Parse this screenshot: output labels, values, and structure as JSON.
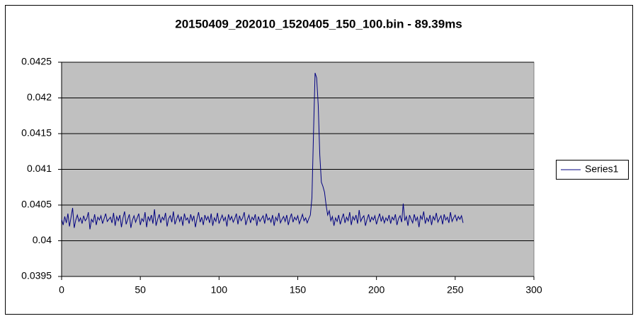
{
  "chart_data": {
    "type": "line",
    "title": "20150409_202010_1520405_150_100.bin - 89.39ms",
    "x": [
      0,
      1,
      2,
      3,
      4,
      5,
      6,
      7,
      8,
      9,
      10,
      11,
      12,
      13,
      14,
      15,
      16,
      17,
      18,
      19,
      20,
      21,
      22,
      23,
      24,
      25,
      26,
      27,
      28,
      29,
      30,
      31,
      32,
      33,
      34,
      35,
      36,
      37,
      38,
      39,
      40,
      41,
      42,
      43,
      44,
      45,
      46,
      47,
      48,
      49,
      50,
      51,
      52,
      53,
      54,
      55,
      56,
      57,
      58,
      59,
      60,
      61,
      62,
      63,
      64,
      65,
      66,
      67,
      68,
      69,
      70,
      71,
      72,
      73,
      74,
      75,
      76,
      77,
      78,
      79,
      80,
      81,
      82,
      83,
      84,
      85,
      86,
      87,
      88,
      89,
      90,
      91,
      92,
      93,
      94,
      95,
      96,
      97,
      98,
      99,
      100,
      101,
      102,
      103,
      104,
      105,
      106,
      107,
      108,
      109,
      110,
      111,
      112,
      113,
      114,
      115,
      116,
      117,
      118,
      119,
      120,
      121,
      122,
      123,
      124,
      125,
      126,
      127,
      128,
      129,
      130,
      131,
      132,
      133,
      134,
      135,
      136,
      137,
      138,
      139,
      140,
      141,
      142,
      143,
      144,
      145,
      146,
      147,
      148,
      149,
      150,
      151,
      152,
      153,
      154,
      155,
      156,
      157,
      158,
      159,
      160,
      161,
      162,
      163,
      164,
      165,
      166,
      167,
      168,
      169,
      170,
      171,
      172,
      173,
      174,
      175,
      176,
      177,
      178,
      179,
      180,
      181,
      182,
      183,
      184,
      185,
      186,
      187,
      188,
      189,
      190,
      191,
      192,
      193,
      194,
      195,
      196,
      197,
      198,
      199,
      200,
      201,
      202,
      203,
      204,
      205,
      206,
      207,
      208,
      209,
      210,
      211,
      212,
      213,
      214,
      215,
      216,
      217,
      218,
      219,
      220,
      221,
      222,
      223,
      224,
      225,
      226,
      227,
      228,
      229,
      230,
      231,
      232,
      233,
      234,
      235,
      236,
      237,
      238,
      239,
      240,
      241,
      242,
      243,
      244,
      245,
      246,
      247,
      248,
      249,
      250,
      251,
      252,
      253,
      254,
      255
    ],
    "series": [
      {
        "name": "Series1",
        "color": "#000080",
        "values": [
          0.0403,
          0.04022,
          0.04034,
          0.04025,
          0.04038,
          0.0402,
          0.04033,
          0.04046,
          0.04018,
          0.04029,
          0.04036,
          0.04027,
          0.04032,
          0.04024,
          0.04035,
          0.04028,
          0.04031,
          0.0404,
          0.04016,
          0.0403,
          0.04026,
          0.04037,
          0.04022,
          0.04033,
          0.04029,
          0.04035,
          0.04024,
          0.04031,
          0.04038,
          0.04027,
          0.0403,
          0.04033,
          0.04025,
          0.04039,
          0.04021,
          0.04034,
          0.04028,
          0.04036,
          0.04019,
          0.04032,
          0.04041,
          0.04023,
          0.0403,
          0.04037,
          0.04018,
          0.04029,
          0.04035,
          0.04026,
          0.04032,
          0.04038,
          0.04022,
          0.04031,
          0.04027,
          0.0404,
          0.04019,
          0.04034,
          0.04028,
          0.04036,
          0.04024,
          0.04044,
          0.04021,
          0.0403,
          0.04037,
          0.04025,
          0.04033,
          0.04029,
          0.04039,
          0.0402,
          0.04031,
          0.04035,
          0.04026,
          0.04041,
          0.04023,
          0.0403,
          0.04036,
          0.04027,
          0.04034,
          0.04021,
          0.04038,
          0.04029,
          0.04032,
          0.04024,
          0.04037,
          0.04028,
          0.04035,
          0.04019,
          0.04031,
          0.0404,
          0.04026,
          0.04033,
          0.04022,
          0.04036,
          0.04029,
          0.04034,
          0.04025,
          0.04038,
          0.04021,
          0.04032,
          0.04027,
          0.04039,
          0.04024,
          0.0403,
          0.04036,
          0.04028,
          0.04033,
          0.0402,
          0.04037,
          0.04029,
          0.04034,
          0.04026,
          0.04031,
          0.04038,
          0.04023,
          0.04035,
          0.04028,
          0.04032,
          0.0404,
          0.04022,
          0.0403,
          0.04036,
          0.04025,
          0.04033,
          0.04029,
          0.04037,
          0.04021,
          0.04034,
          0.04027,
          0.04031,
          0.04035,
          0.04024,
          0.04038,
          0.04029,
          0.04032,
          0.04026,
          0.04036,
          0.04021,
          0.04033,
          0.04028,
          0.04039,
          0.04025,
          0.0403,
          0.04034,
          0.04027,
          0.04036,
          0.04022,
          0.04031,
          0.04038,
          0.04026,
          0.04033,
          0.04029,
          0.04035,
          0.04024,
          0.0403,
          0.04037,
          0.04028,
          0.04032,
          0.04025,
          0.04031,
          0.04036,
          0.0406,
          0.0415,
          0.04235,
          0.04228,
          0.0419,
          0.0412,
          0.04082,
          0.04076,
          0.04068,
          0.0405,
          0.04036,
          0.04042,
          0.04028,
          0.04034,
          0.04021,
          0.04032,
          0.04027,
          0.04036,
          0.04023,
          0.04031,
          0.04038,
          0.04025,
          0.04033,
          0.04028,
          0.0404,
          0.04022,
          0.04034,
          0.04029,
          0.04036,
          0.04024,
          0.04043,
          0.04027,
          0.04032,
          0.04035,
          0.04021,
          0.0403,
          0.04037,
          0.04026,
          0.04033,
          0.04029,
          0.04035,
          0.04023,
          0.04031,
          0.04038,
          0.04027,
          0.04034,
          0.04025,
          0.04032,
          0.04028,
          0.04036,
          0.04024,
          0.04033,
          0.04029,
          0.04037,
          0.04022,
          0.04031,
          0.04035,
          0.04026,
          0.04052,
          0.04028,
          0.04034,
          0.04021,
          0.04036,
          0.0403,
          0.04025,
          0.04037,
          0.04028,
          0.04033,
          0.04019,
          0.04035,
          0.0403,
          0.04041,
          0.04024,
          0.04032,
          0.04027,
          0.04036,
          0.04022,
          0.04034,
          0.04029,
          0.04039,
          0.04026,
          0.04031,
          0.04035,
          0.04023,
          0.04037,
          0.04029,
          0.04033,
          0.04025,
          0.0404,
          0.04027,
          0.04032,
          0.04036,
          0.04028,
          0.04034,
          0.0403,
          0.04035,
          0.04025
        ]
      }
    ],
    "xlim": [
      0,
      300
    ],
    "xticks": [
      0,
      50,
      100,
      150,
      200,
      250,
      300
    ],
    "ylim": [
      0.0395,
      0.0425
    ],
    "yticks": [
      0.0395,
      0.04,
      0.0405,
      0.041,
      0.0415,
      0.042,
      0.0425
    ],
    "grid": true,
    "legend": "right"
  }
}
